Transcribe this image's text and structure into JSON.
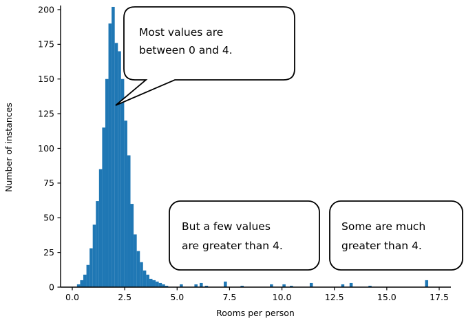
{
  "chart_data": {
    "type": "bar",
    "subtype": "histogram",
    "title": "",
    "xlabel": "Rooms per person",
    "ylabel": "Number of instances",
    "xlim": [
      -0.6,
      18.1
    ],
    "ylim": [
      0,
      203
    ],
    "grid": false,
    "legend": null,
    "bar_color": "#1f77b4",
    "bin_width": 0.15,
    "x_ticks": [
      {
        "v": 0,
        "label": "0.0"
      },
      {
        "v": 2.5,
        "label": "2.5"
      },
      {
        "v": 5,
        "label": "5.0"
      },
      {
        "v": 7.5,
        "label": "7.5"
      },
      {
        "v": 10,
        "label": "10.0"
      },
      {
        "v": 12.5,
        "label": "12.5"
      },
      {
        "v": 15,
        "label": "15.0"
      },
      {
        "v": 17.5,
        "label": "17.5"
      }
    ],
    "y_ticks": [
      {
        "v": 0,
        "label": "0"
      },
      {
        "v": 25,
        "label": "25"
      },
      {
        "v": 50,
        "label": "50"
      },
      {
        "v": 75,
        "label": "75"
      },
      {
        "v": 100,
        "label": "100"
      },
      {
        "v": 125,
        "label": "125"
      },
      {
        "v": 150,
        "label": "150"
      },
      {
        "v": 175,
        "label": "175"
      },
      {
        "v": 200,
        "label": "200"
      }
    ],
    "bins": [
      {
        "x": 0.3,
        "count": 2
      },
      {
        "x": 0.45,
        "count": 5
      },
      {
        "x": 0.6,
        "count": 9
      },
      {
        "x": 0.75,
        "count": 16
      },
      {
        "x": 0.9,
        "count": 28
      },
      {
        "x": 1.05,
        "count": 45
      },
      {
        "x": 1.2,
        "count": 62
      },
      {
        "x": 1.35,
        "count": 85
      },
      {
        "x": 1.5,
        "count": 115
      },
      {
        "x": 1.65,
        "count": 150
      },
      {
        "x": 1.8,
        "count": 190
      },
      {
        "x": 1.95,
        "count": 202
      },
      {
        "x": 2.1,
        "count": 176
      },
      {
        "x": 2.25,
        "count": 170
      },
      {
        "x": 2.4,
        "count": 150
      },
      {
        "x": 2.55,
        "count": 120
      },
      {
        "x": 2.7,
        "count": 95
      },
      {
        "x": 2.85,
        "count": 60
      },
      {
        "x": 3.0,
        "count": 38
      },
      {
        "x": 3.15,
        "count": 26
      },
      {
        "x": 3.3,
        "count": 18
      },
      {
        "x": 3.45,
        "count": 12
      },
      {
        "x": 3.6,
        "count": 9
      },
      {
        "x": 3.75,
        "count": 6
      },
      {
        "x": 3.9,
        "count": 5
      },
      {
        "x": 4.05,
        "count": 4
      },
      {
        "x": 4.2,
        "count": 3
      },
      {
        "x": 4.35,
        "count": 2
      },
      {
        "x": 4.5,
        "count": 1
      },
      {
        "x": 5.2,
        "count": 2
      },
      {
        "x": 5.9,
        "count": 2
      },
      {
        "x": 6.15,
        "count": 3
      },
      {
        "x": 6.4,
        "count": 1
      },
      {
        "x": 7.3,
        "count": 4
      },
      {
        "x": 8.1,
        "count": 1
      },
      {
        "x": 9.5,
        "count": 2
      },
      {
        "x": 10.1,
        "count": 2
      },
      {
        "x": 10.45,
        "count": 1
      },
      {
        "x": 11.4,
        "count": 3
      },
      {
        "x": 12.9,
        "count": 2
      },
      {
        "x": 13.3,
        "count": 3
      },
      {
        "x": 14.2,
        "count": 1
      },
      {
        "x": 16.9,
        "count": 5
      }
    ],
    "annotations": [
      {
        "lines": [
          "Most values are",
          "between 0 and 4."
        ]
      },
      {
        "lines": [
          "But a few values",
          "are greater than 4."
        ]
      },
      {
        "lines": [
          "Some are much",
          "greater than 4."
        ]
      }
    ]
  }
}
